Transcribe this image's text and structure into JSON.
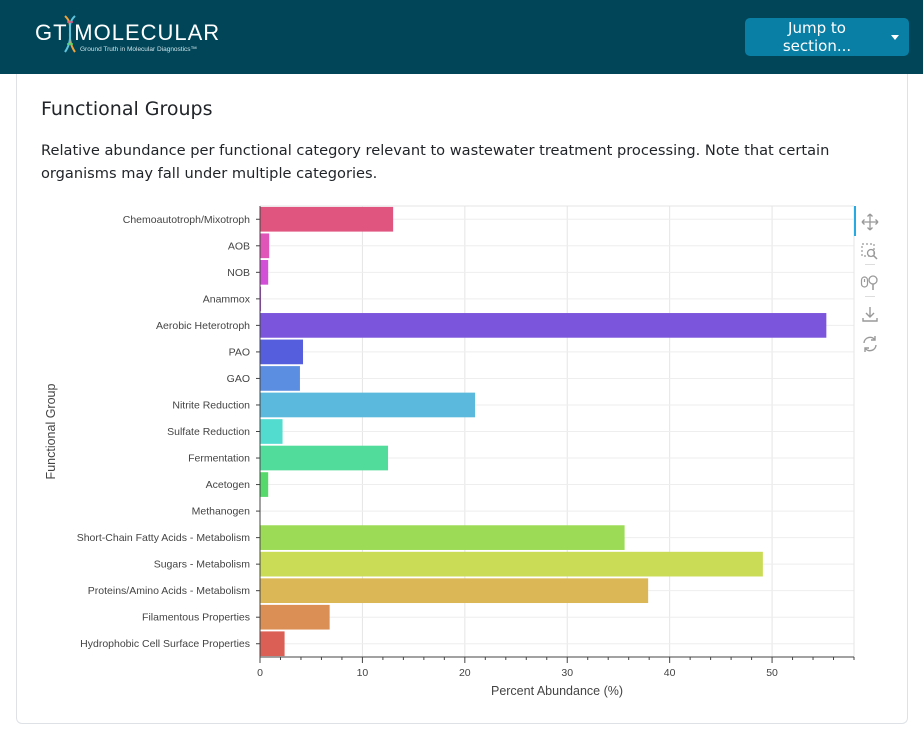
{
  "header": {
    "logo_text": "GT MOLECULAR",
    "logo_tagline": "Ground Truth in Molecular Diagnostics™",
    "jump_label": "Jump to section...",
    "background_color": "#004658",
    "button_color": "#0a7fa6"
  },
  "section": {
    "title": "Functional Groups",
    "description": "Relative abundance per functional category relevant to wastewater treatment processing. Note that certain organisms may fall under multiple categories."
  },
  "toolbar": {
    "tools": [
      "pan-icon",
      "box-zoom-icon",
      "wheel-zoom-icon",
      "save-icon",
      "reset-icon"
    ]
  },
  "chart_data": {
    "type": "bar",
    "orientation": "horizontal",
    "xlabel": "Percent Abundance (%)",
    "ylabel": "Functional Group",
    "xlim": [
      0,
      58
    ],
    "xticks": [
      0,
      10,
      20,
      30,
      40,
      50
    ],
    "grid": true,
    "categories": [
      "Chemoautotroph/Mixotroph",
      "AOB",
      "NOB",
      "Anammox",
      "Aerobic Heterotroph",
      "PAO",
      "GAO",
      "Nitrite Reduction",
      "Sulfate Reduction",
      "Fermentation",
      "Acetogen",
      "Methanogen",
      "Short-Chain Fatty Acids - Metabolism",
      "Sugars - Metabolism",
      "Proteins/Amino Acids - Metabolism",
      "Filamentous Properties",
      "Hydrophobic Cell Surface Properties"
    ],
    "values": [
      13.0,
      0.9,
      0.8,
      0.1,
      55.3,
      4.2,
      3.9,
      21.0,
      2.2,
      12.5,
      0.8,
      0.05,
      35.6,
      49.1,
      37.9,
      6.8,
      2.4
    ],
    "colors": [
      "#e05580",
      "#e056b8",
      "#d34fd8",
      "#b04fdc",
      "#7b55db",
      "#555fdd",
      "#5b8ee0",
      "#5ab9dc",
      "#52dcd0",
      "#52dc9c",
      "#55d96a",
      "#6ddb55",
      "#9bdb55",
      "#cadb55",
      "#dbb855",
      "#db8f55",
      "#db5f55"
    ]
  }
}
